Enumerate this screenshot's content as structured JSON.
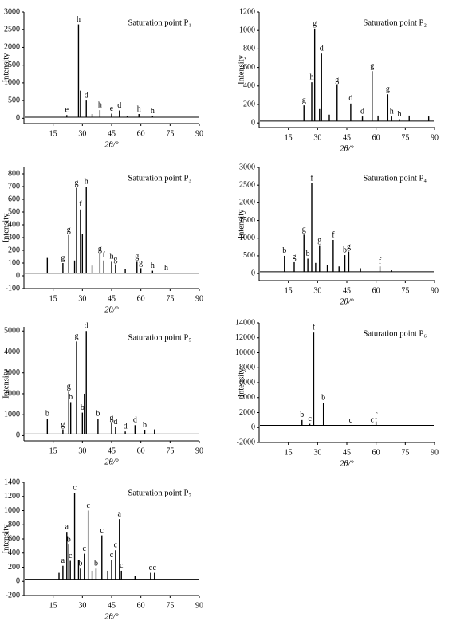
{
  "chart_data": [
    {
      "type": "stick",
      "title": "Saturation point P₁",
      "x_label": "2θ/°",
      "y_label": "Intensity",
      "color": "#000000",
      "x": [
        22,
        28,
        29,
        32,
        35,
        39,
        45,
        49,
        53,
        59,
        66,
        73
      ],
      "values": [
        90,
        2650,
        780,
        500,
        120,
        230,
        130,
        220,
        70,
        120,
        60,
        40
      ],
      "labels": [
        "e",
        "h",
        null,
        "d",
        null,
        "h",
        "e",
        "d",
        null,
        "h",
        "h",
        null
      ],
      "baseline": 30,
      "xlim": [
        0,
        90
      ],
      "ylim": [
        -150,
        3000
      ],
      "xticks": [
        15,
        30,
        45,
        60,
        75,
        90
      ],
      "yticks": [
        0,
        500,
        1000,
        1500,
        2000,
        2500,
        3000
      ]
    },
    {
      "type": "stick",
      "title": "Saturation point P₂",
      "x_label": "2θ/°",
      "y_label": "Intensity",
      "color": "#000000",
      "x": [
        23,
        27,
        28.5,
        31,
        32,
        36,
        40,
        47,
        53,
        58,
        61,
        66,
        68,
        72,
        77,
        87
      ],
      "values": [
        190,
        440,
        1020,
        150,
        750,
        90,
        410,
        210,
        70,
        560,
        80,
        310,
        70,
        40,
        80,
        70
      ],
      "labels": [
        "g",
        "h",
        "g",
        null,
        "d",
        null,
        "g",
        "d",
        "d",
        "g",
        null,
        "g",
        "h",
        "h",
        null,
        null
      ],
      "baseline": 20,
      "xlim": [
        0,
        90
      ],
      "ylim": [
        -50,
        1200
      ],
      "xticks": [
        15,
        30,
        45,
        60,
        75,
        90
      ],
      "yticks": [
        0,
        200,
        400,
        600,
        800,
        1000,
        1200
      ]
    },
    {
      "type": "stick",
      "title": "Saturation point P₃",
      "x_label": "2θ/°",
      "y_label": "Intensity",
      "color": "#000000",
      "x": [
        12,
        20,
        23,
        26,
        27,
        29,
        30,
        32,
        35,
        39,
        41,
        45,
        47,
        52,
        58,
        60,
        66,
        73
      ],
      "values": [
        140,
        100,
        320,
        120,
        690,
        520,
        330,
        700,
        80,
        170,
        120,
        110,
        90,
        50,
        110,
        60,
        40,
        20
      ],
      "labels": [
        null,
        "g",
        "g",
        null,
        "g",
        "f",
        null,
        "h",
        null,
        "g",
        "f",
        "h",
        "g",
        null,
        "g",
        "g",
        "h",
        "h"
      ],
      "baseline": 20,
      "xlim": [
        0,
        90
      ],
      "ylim": [
        -100,
        850
      ],
      "xticks": [
        15,
        30,
        45,
        60,
        75,
        90
      ],
      "yticks": [
        -100,
        0,
        100,
        200,
        300,
        400,
        500,
        600,
        700,
        800
      ]
    },
    {
      "type": "stick",
      "title": "Saturation point P₄",
      "x_label": "2θ/°",
      "y_label": "Intensity",
      "color": "#000000",
      "x": [
        13,
        18,
        23,
        25,
        27,
        29,
        31,
        35,
        38,
        41,
        44,
        46,
        52,
        62,
        68
      ],
      "values": [
        500,
        320,
        1100,
        420,
        2550,
        300,
        800,
        250,
        950,
        200,
        520,
        620,
        150,
        200,
        90
      ],
      "labels": [
        "b",
        "g",
        "g",
        "b",
        "f",
        null,
        "g",
        null,
        "f",
        null,
        "b",
        "g",
        null,
        "f",
        null
      ],
      "baseline": 50,
      "xlim": [
        0,
        90
      ],
      "ylim": [
        -200,
        3000
      ],
      "xticks": [
        15,
        30,
        45,
        60,
        75,
        90
      ],
      "yticks": [
        0,
        500,
        1000,
        1500,
        2000,
        2500,
        3000
      ]
    },
    {
      "type": "stick",
      "title": "Saturation point P₅",
      "x_label": "2θ/°",
      "y_label": "Intensity",
      "color": "#000000",
      "x": [
        12,
        20,
        23,
        24,
        27,
        30,
        31,
        32,
        38,
        45,
        47,
        52,
        57,
        62,
        67
      ],
      "values": [
        800,
        300,
        2100,
        1600,
        4500,
        1100,
        2000,
        5000,
        800,
        600,
        400,
        200,
        500,
        250,
        300
      ],
      "labels": [
        "b",
        "g",
        "g",
        "b",
        "g",
        "b",
        null,
        "d",
        "b",
        "g",
        "d",
        "d",
        "d",
        "b",
        null
      ],
      "baseline": 80,
      "xlim": [
        0,
        90
      ],
      "ylim": [
        -250,
        5200
      ],
      "xticks": [
        15,
        30,
        45,
        60,
        75,
        90
      ],
      "yticks": [
        0,
        1000,
        2000,
        3000,
        4000,
        5000
      ]
    },
    {
      "type": "stick",
      "title": "Saturation point P₆",
      "x_label": "2θ/°",
      "y_label": "Intensity",
      "color": "#000000",
      "x": [
        22,
        26,
        28,
        33,
        47,
        58,
        60
      ],
      "values": [
        1000,
        500,
        12700,
        3300,
        250,
        350,
        800
      ],
      "labels": [
        "b",
        "c",
        "f",
        "b",
        "c",
        "c",
        "f"
      ],
      "baseline": 300,
      "xlim": [
        0,
        90
      ],
      "ylim": [
        -2000,
        14000
      ],
      "xticks": [
        15,
        30,
        45,
        60,
        75,
        90
      ],
      "yticks": [
        -2000,
        0,
        2000,
        4000,
        6000,
        8000,
        10000,
        12000,
        14000
      ]
    },
    {
      "type": "stick",
      "title": "Saturation point P₇",
      "x_label": "2θ/°",
      "y_label": "Intensity",
      "color": "#000000",
      "x": [
        18,
        20,
        22,
        23,
        23.8,
        26,
        28,
        29,
        31,
        33,
        35,
        37,
        40,
        43,
        45,
        47,
        49,
        50,
        57,
        65,
        67
      ],
      "values": [
        120,
        220,
        700,
        520,
        290,
        1250,
        300,
        180,
        390,
        1000,
        150,
        180,
        650,
        150,
        300,
        440,
        880,
        150,
        80,
        120,
        120
      ],
      "labels": [
        null,
        "a",
        "a",
        "b",
        "c",
        "c",
        null,
        "b",
        "c",
        "c",
        null,
        "b",
        "c",
        null,
        "c",
        "c",
        "a",
        "c",
        null,
        "c",
        "c"
      ],
      "baseline": 30,
      "xlim": [
        0,
        90
      ],
      "ylim": [
        -200,
        1400
      ],
      "xticks": [
        15,
        30,
        45,
        60,
        75,
        90
      ],
      "yticks": [
        -200,
        0,
        200,
        400,
        600,
        800,
        1000,
        1200,
        1400
      ]
    }
  ]
}
